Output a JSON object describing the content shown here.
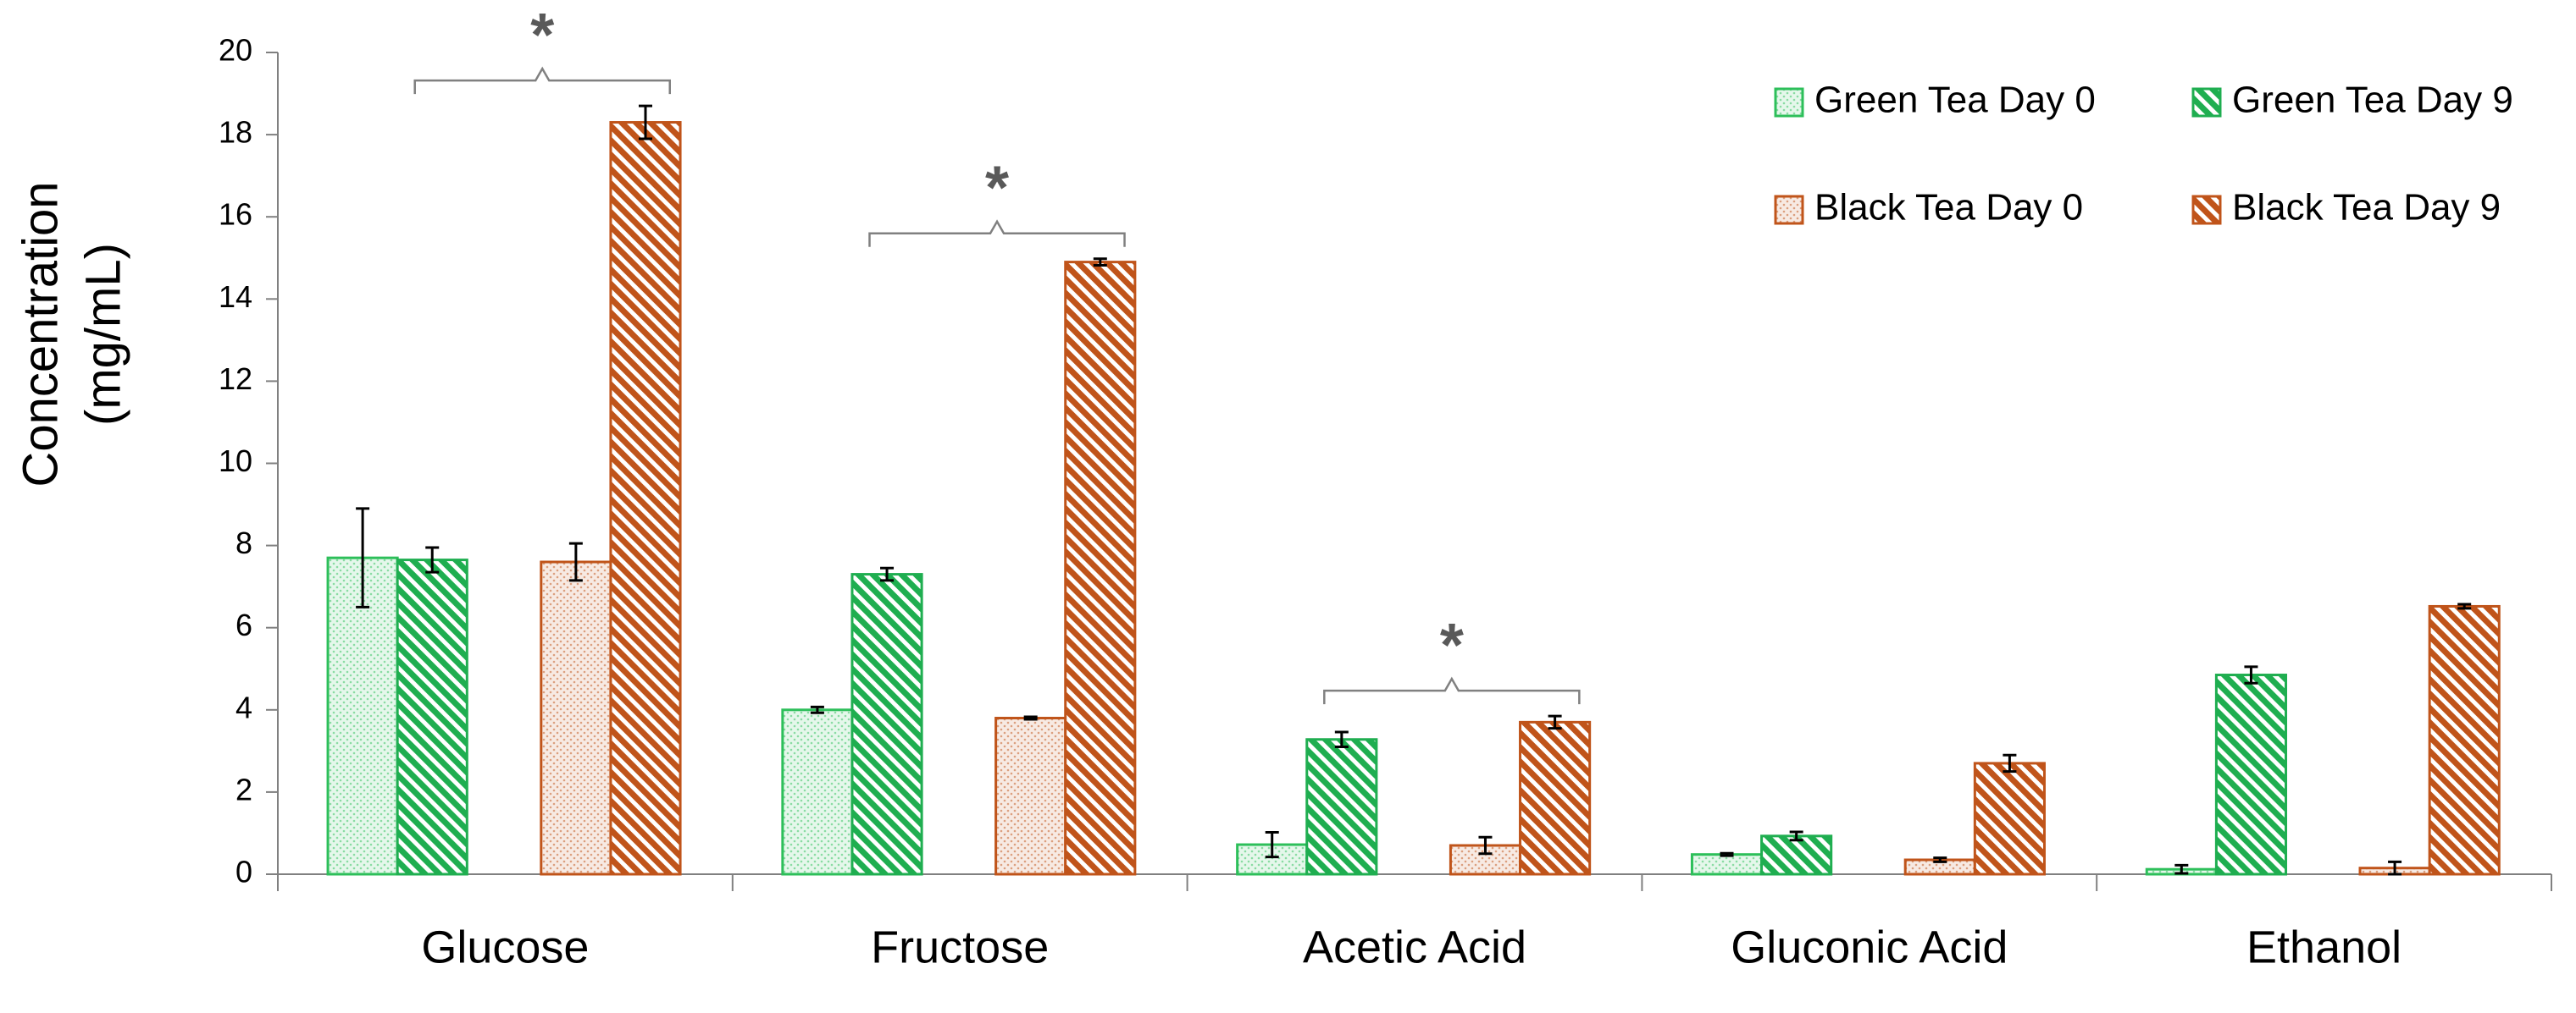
{
  "chart_data": {
    "type": "bar",
    "ylabel": [
      "Concentration",
      "(mg/mL)"
    ],
    "categories": [
      "Glucose",
      "Fructose",
      "Acetic Acid",
      "Gluconic Acid",
      "Ethanol"
    ],
    "series": [
      {
        "name": "Green Tea Day 0",
        "color": "#2dbf5a",
        "pattern": "dots",
        "values": [
          7.7,
          4.0,
          0.72,
          0.48,
          0.12
        ],
        "errors": [
          1.2,
          0.07,
          0.3,
          0.03,
          0.1
        ]
      },
      {
        "name": "Green Tea Day 9",
        "color": "#1fae50",
        "pattern": "hatch",
        "values": [
          7.65,
          7.3,
          3.28,
          0.93,
          4.85
        ],
        "errors": [
          0.3,
          0.15,
          0.18,
          0.1,
          0.2
        ]
      },
      {
        "name": "Black Tea Day 0",
        "color": "#c0541a",
        "pattern": "dots",
        "values": [
          7.6,
          3.8,
          0.7,
          0.35,
          0.15
        ],
        "errors": [
          0.45,
          0.03,
          0.2,
          0.05,
          0.15
        ]
      },
      {
        "name": "Black Tea Day 9",
        "color": "#c0541a",
        "pattern": "hatch",
        "values": [
          18.3,
          14.9,
          3.7,
          2.7,
          6.52
        ],
        "errors": [
          0.4,
          0.08,
          0.15,
          0.2,
          0.05
        ]
      }
    ],
    "annotations": [
      {
        "text": "*",
        "category": 0
      },
      {
        "text": "*",
        "category": 1
      },
      {
        "text": "*",
        "category": 2
      }
    ],
    "ylim": [
      0,
      20
    ],
    "yticks": [
      0,
      2,
      4,
      6,
      8,
      10,
      12,
      14,
      16,
      18,
      20
    ],
    "legend": "upper right"
  }
}
